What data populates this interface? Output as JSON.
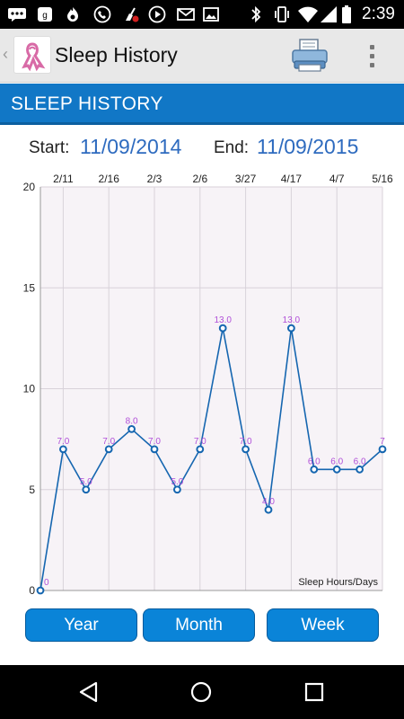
{
  "status_bar": {
    "time": "2:39",
    "icons": [
      "messages-icon",
      "gallery-icon",
      "flame-icon",
      "phone-icon",
      "cleaner-icon",
      "play-icon",
      "mail-icon",
      "image-icon",
      "bluetooth-icon",
      "vibrate-icon",
      "wifi-icon",
      "cell-signal-icon",
      "battery-icon"
    ]
  },
  "app_bar": {
    "title": "Sleep History"
  },
  "section": {
    "title": "SLEEP HISTORY"
  },
  "date_range": {
    "start_label": "Start:",
    "start_value": "11/09/2014",
    "end_label": "End:",
    "end_value": "11/09/2015"
  },
  "chart_data": {
    "type": "line",
    "x_tick_labels": [
      "2/11",
      "2/16",
      "2/3",
      "2/6",
      "3/27",
      "4/17",
      "4/7",
      "5/16"
    ],
    "y_ticks": [
      0,
      5,
      10,
      15,
      20
    ],
    "ylim": [
      0,
      20
    ],
    "values": [
      0,
      7,
      5,
      7,
      8,
      7,
      5,
      7,
      13,
      7,
      4,
      13,
      6,
      6,
      6,
      7
    ],
    "point_labels": [
      "0",
      "7.0",
      "5.0",
      "7.0",
      "8.0",
      "7.0",
      "5.0",
      "7.0",
      "13.0",
      "7.0",
      "4.0",
      "13.0",
      "6.0",
      "6.0",
      "6.0",
      "7"
    ],
    "series_name": "Sleep Hours/Days",
    "grid": true,
    "legend_position": "bottom-right",
    "colors": {
      "line": "#1566b0",
      "point_fill": "#ffffff",
      "point_stroke": "#1566b0",
      "label": "#b04fd8",
      "plot_bg": "#f7f3f7",
      "grid": "#d8d2da"
    }
  },
  "period_buttons": [
    {
      "label": "Year"
    },
    {
      "label": "Month"
    },
    {
      "label": "Week"
    }
  ],
  "nav_bar": {
    "icons": [
      "back-triangle-icon",
      "home-circle-icon",
      "recents-square-icon"
    ]
  }
}
